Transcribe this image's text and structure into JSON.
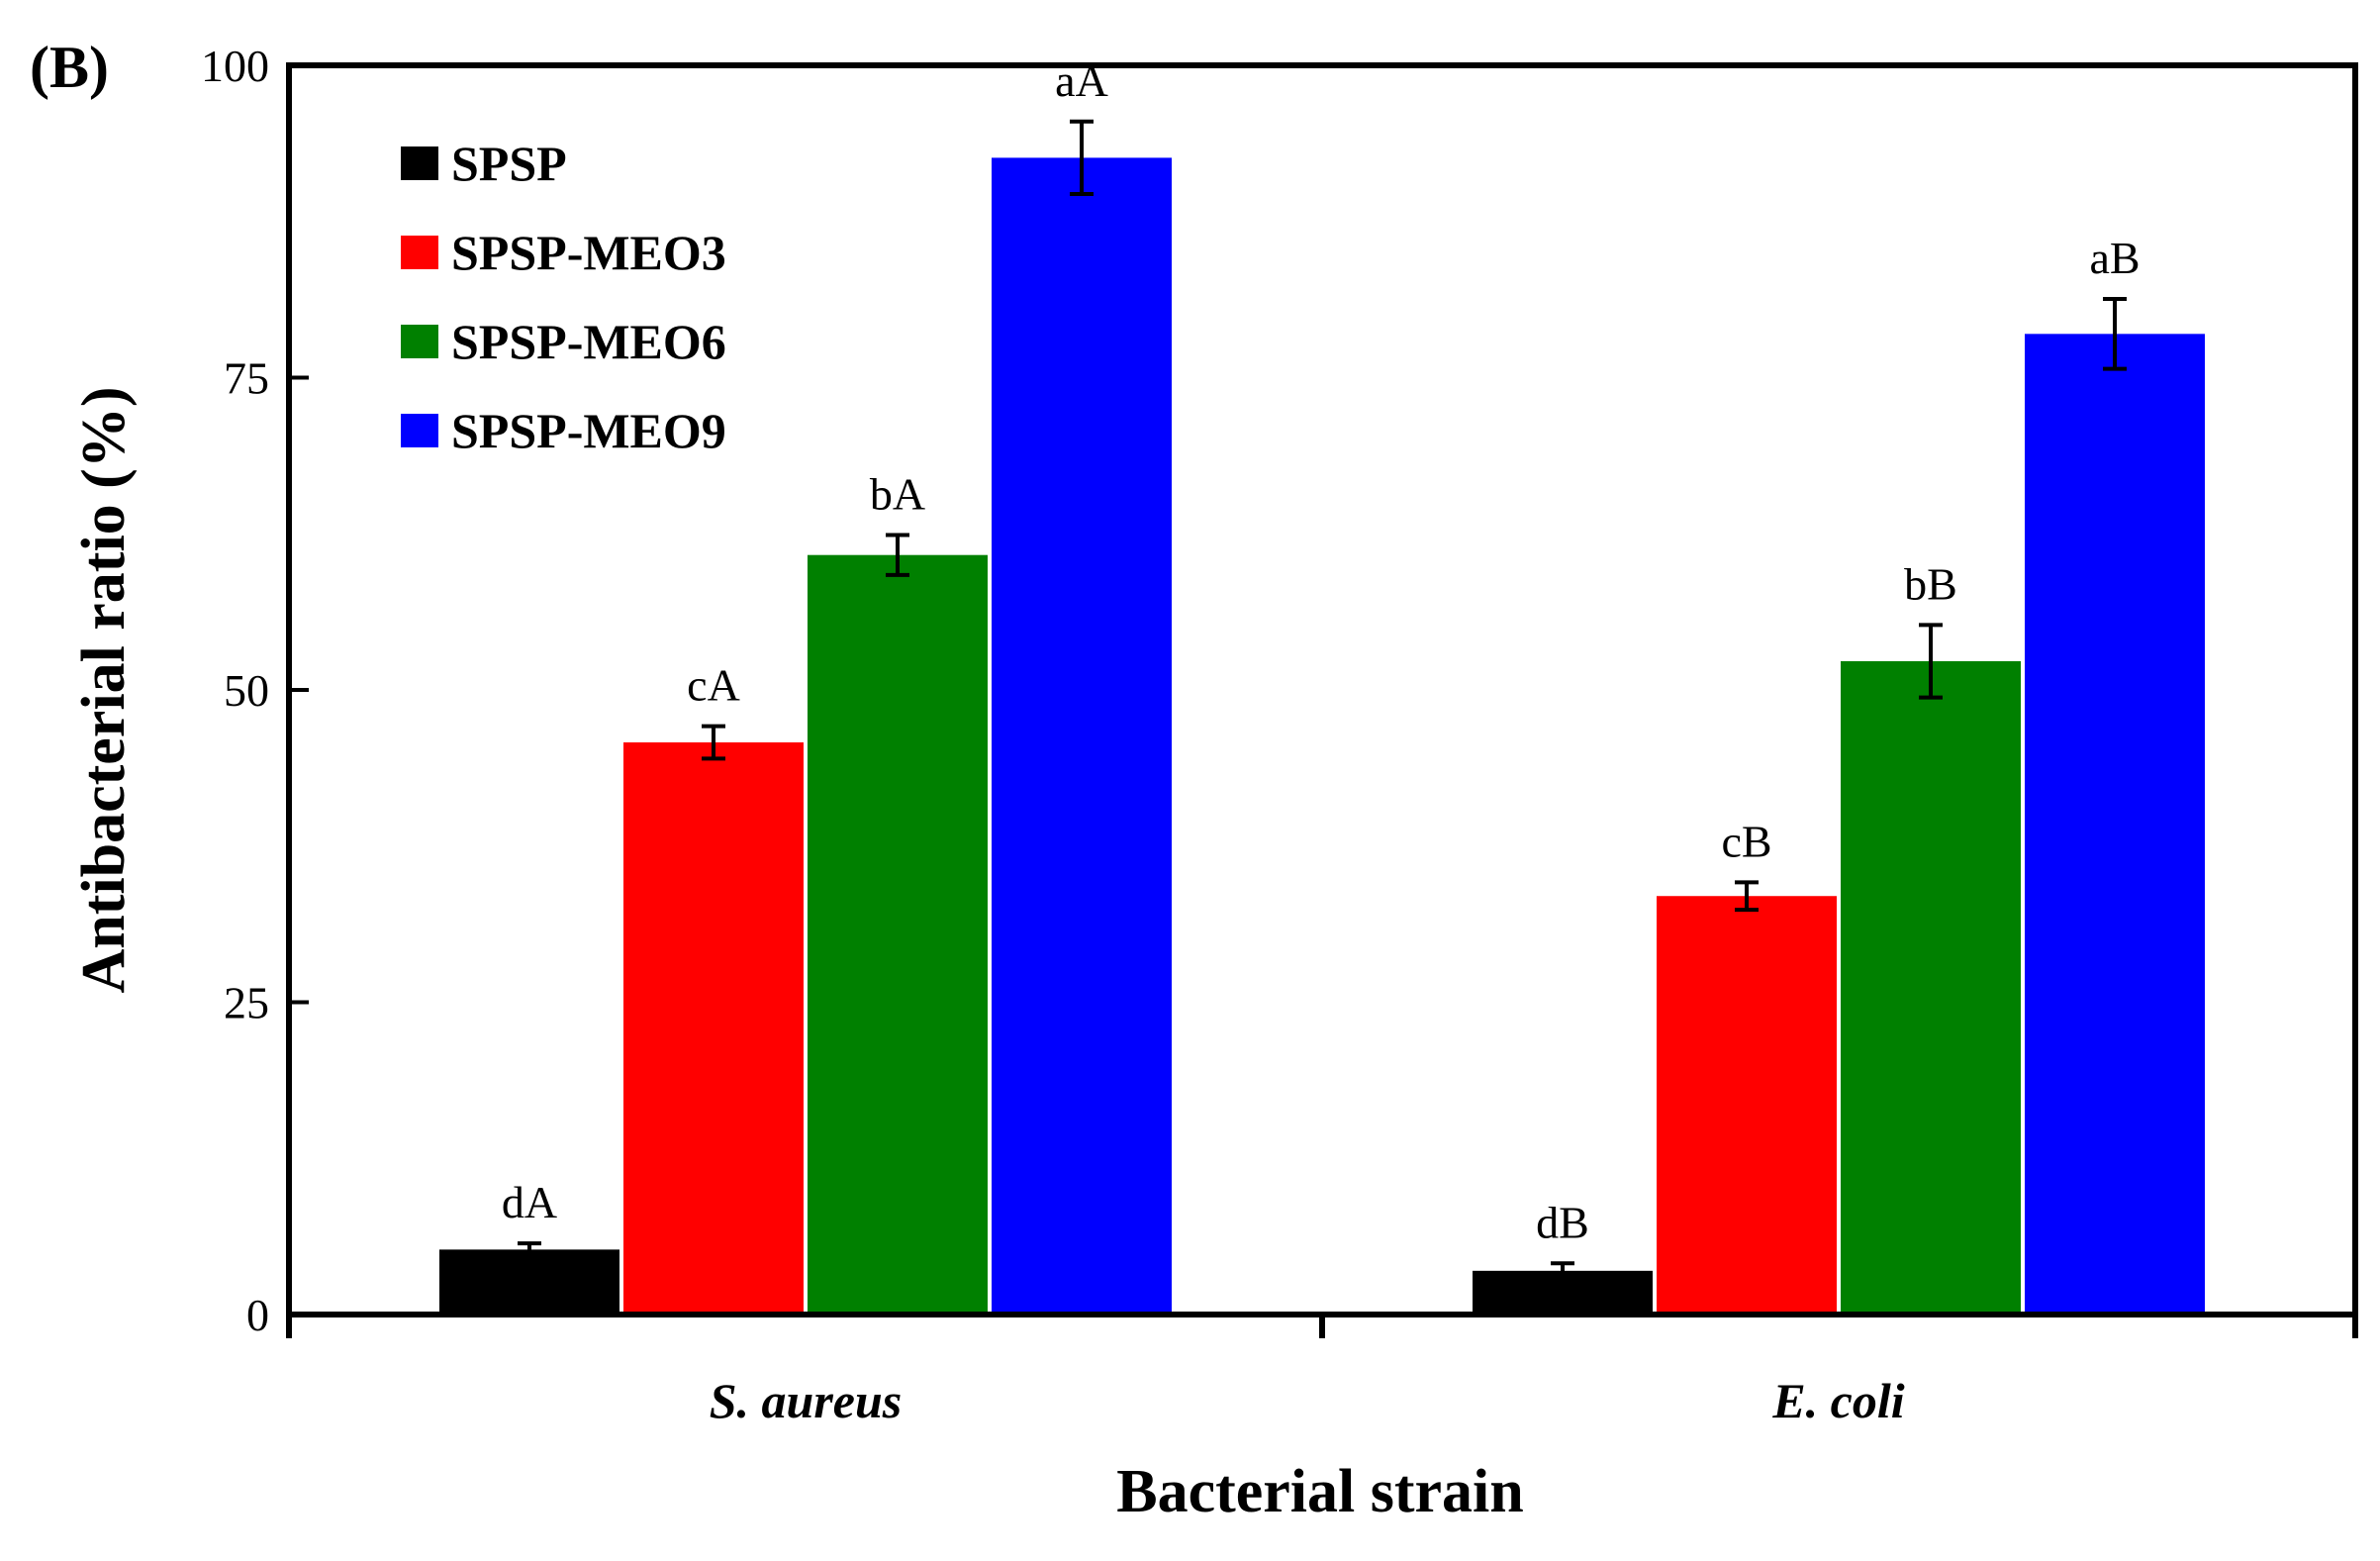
{
  "chart_data": {
    "type": "bar",
    "panel_label": "(B)",
    "title": "",
    "xlabel": "Bacterial strain",
    "ylabel": "Antibacterial ratio (%)",
    "ylim": [
      0,
      100
    ],
    "yticks": [
      "0",
      "25",
      "50",
      "75",
      "100"
    ],
    "categories": [
      "S. aureus",
      "E. coli"
    ],
    "legend_position": "top-left",
    "grid": false,
    "series": [
      {
        "name": "SPSP",
        "color": "#000000",
        "values": [
          5.2,
          3.5
        ],
        "errors": [
          0.5,
          0.6
        ],
        "labels": [
          "dA",
          "dB"
        ]
      },
      {
        "name": "SPSP-MEO3",
        "color": "#ff0000",
        "values": [
          45.8,
          33.5
        ],
        "errors": [
          1.3,
          1.1
        ],
        "labels": [
          "cA",
          "cB"
        ]
      },
      {
        "name": "SPSP-MEO6",
        "color": "#008000",
        "values": [
          60.8,
          52.3
        ],
        "errors": [
          1.6,
          2.9
        ],
        "labels": [
          "bA",
          "bB"
        ]
      },
      {
        "name": "SPSP-MEO9",
        "color": "#0000ff",
        "values": [
          92.6,
          78.5
        ],
        "errors": [
          2.9,
          2.8
        ],
        "labels": [
          "aA",
          "aB"
        ]
      }
    ]
  }
}
